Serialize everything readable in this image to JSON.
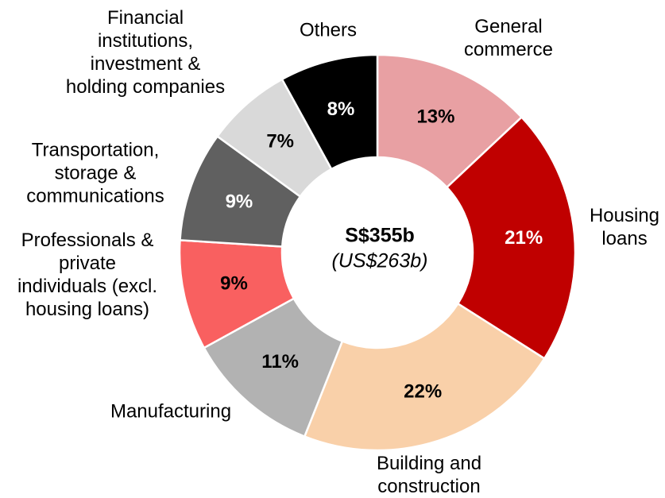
{
  "chart_data": {
    "type": "donut",
    "categories": [
      "General\ncommerce",
      "Housing\nloans",
      "Building and\nconstruction",
      "Manufacturing",
      "Professionals &\nprivate\nindividuals (excl.\nhousing loans)",
      "Transportation,\nstorage &\ncommunications",
      "Financial\ninstitutions,\ninvestment &\nholding companies",
      "Others"
    ],
    "values": [
      13,
      21,
      22,
      11,
      9,
      9,
      7,
      8
    ],
    "value_labels": [
      "13%",
      "21%",
      "22%",
      "11%",
      "9%",
      "9%",
      "7%",
      "8%"
    ],
    "colors": [
      "#e8a0a3",
      "#c00000",
      "#f9d0a9",
      "#b2b2b2",
      "#f96060",
      "#606060",
      "#d9d9d9",
      "#000000"
    ],
    "value_label_colors": [
      "#000000",
      "#ffffff",
      "#000000",
      "#000000",
      "#000000",
      "#ffffff",
      "#000000",
      "#ffffff"
    ],
    "center_label": "S$355b",
    "center_sublabel": "(US$263b)"
  }
}
